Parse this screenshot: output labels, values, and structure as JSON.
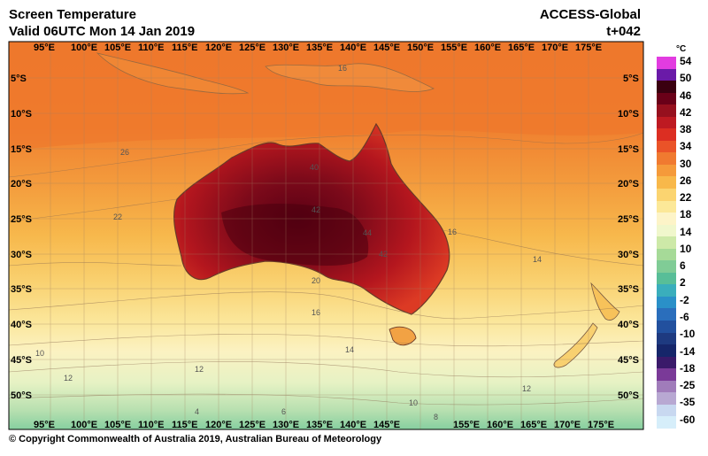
{
  "header": {
    "title": "Screen Temperature",
    "valid": "Valid 06UTC Mon 14 Jan 2019",
    "model": "ACCESS-Global",
    "lead": "t+042"
  },
  "map": {
    "lon_labels": [
      "95°E",
      "100°E",
      "105°E",
      "110°E",
      "115°E",
      "120°E",
      "125°E",
      "130°E",
      "135°E",
      "140°E",
      "145°E",
      "150°E",
      "155°E",
      "160°E",
      "165°E",
      "170°E",
      "175°E"
    ],
    "lat_labels": [
      "5°S",
      "10°S",
      "15°S",
      "20°S",
      "25°S",
      "30°S",
      "35°S",
      "40°S",
      "45°S",
      "50°S"
    ],
    "contour_labels": [
      "16",
      "26",
      "22",
      "10",
      "12",
      "14",
      "12",
      "16",
      "20",
      "16",
      "14",
      "12",
      "10",
      "8",
      "6",
      "4",
      "40",
      "42",
      "44",
      "42"
    ]
  },
  "legend": {
    "unit": "°C",
    "labels": [
      "54",
      "50",
      "46",
      "42",
      "38",
      "34",
      "30",
      "26",
      "22",
      "18",
      "14",
      "10",
      "6",
      "2",
      "-2",
      "-6",
      "-10",
      "-14",
      "-18",
      "-25",
      "-35",
      "-60"
    ],
    "colors": [
      "#e23ce0",
      "#6a1aa8",
      "#3a0010",
      "#6a0018",
      "#96101e",
      "#be1a22",
      "#dc2e22",
      "#ea5328",
      "#f07a30",
      "#f59a3a",
      "#f8b84a",
      "#fbd470",
      "#fce898",
      "#fdf4c8",
      "#f0f7cc",
      "#cde9a8",
      "#a6da98",
      "#80cc96",
      "#58be98",
      "#3aaebc",
      "#2a90c8",
      "#2a6ebc",
      "#22509e",
      "#1e3a80",
      "#16266a",
      "#3a1a6a",
      "#7a3a98",
      "#a07cba",
      "#b8a8d2",
      "#c8d8f0",
      "#d6eefa"
    ]
  },
  "footer": {
    "copyright": "© Copyright Commonwealth of Australia 2019, Australian Bureau of Meteorology"
  }
}
